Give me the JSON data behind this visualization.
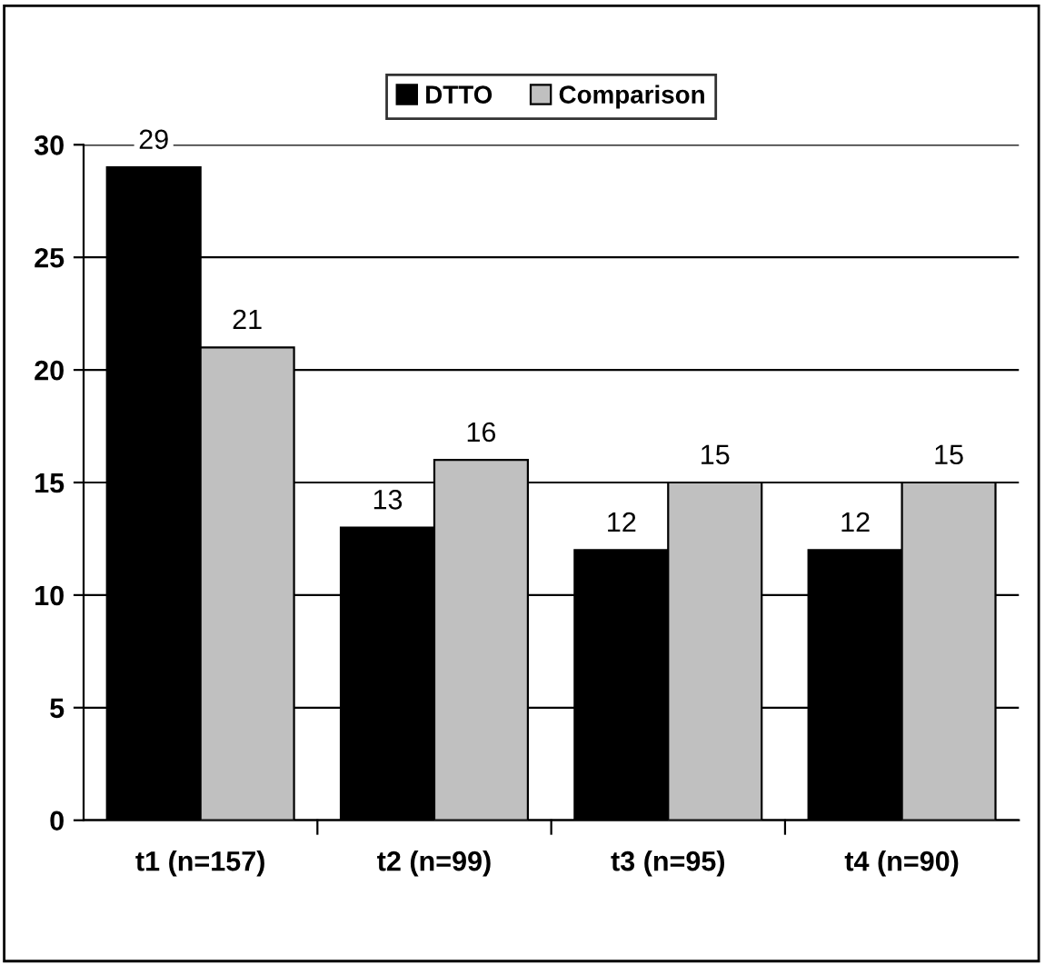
{
  "chart_data": {
    "type": "bar",
    "categories": [
      "t1 (n=157)",
      "t2 (n=99)",
      "t3 (n=95)",
      "t4 (n=90)"
    ],
    "series": [
      {
        "name": "DTTO",
        "color": "#000000",
        "values": [
          29,
          13,
          12,
          12
        ]
      },
      {
        "name": "Comparison",
        "color": "#c0c0c0",
        "values": [
          21,
          16,
          15,
          15
        ]
      }
    ],
    "ylim": [
      0,
      30
    ],
    "yticks": [
      0,
      5,
      10,
      15,
      20,
      25,
      30
    ],
    "grid": "y",
    "legend": "top",
    "data_labels": true
  }
}
